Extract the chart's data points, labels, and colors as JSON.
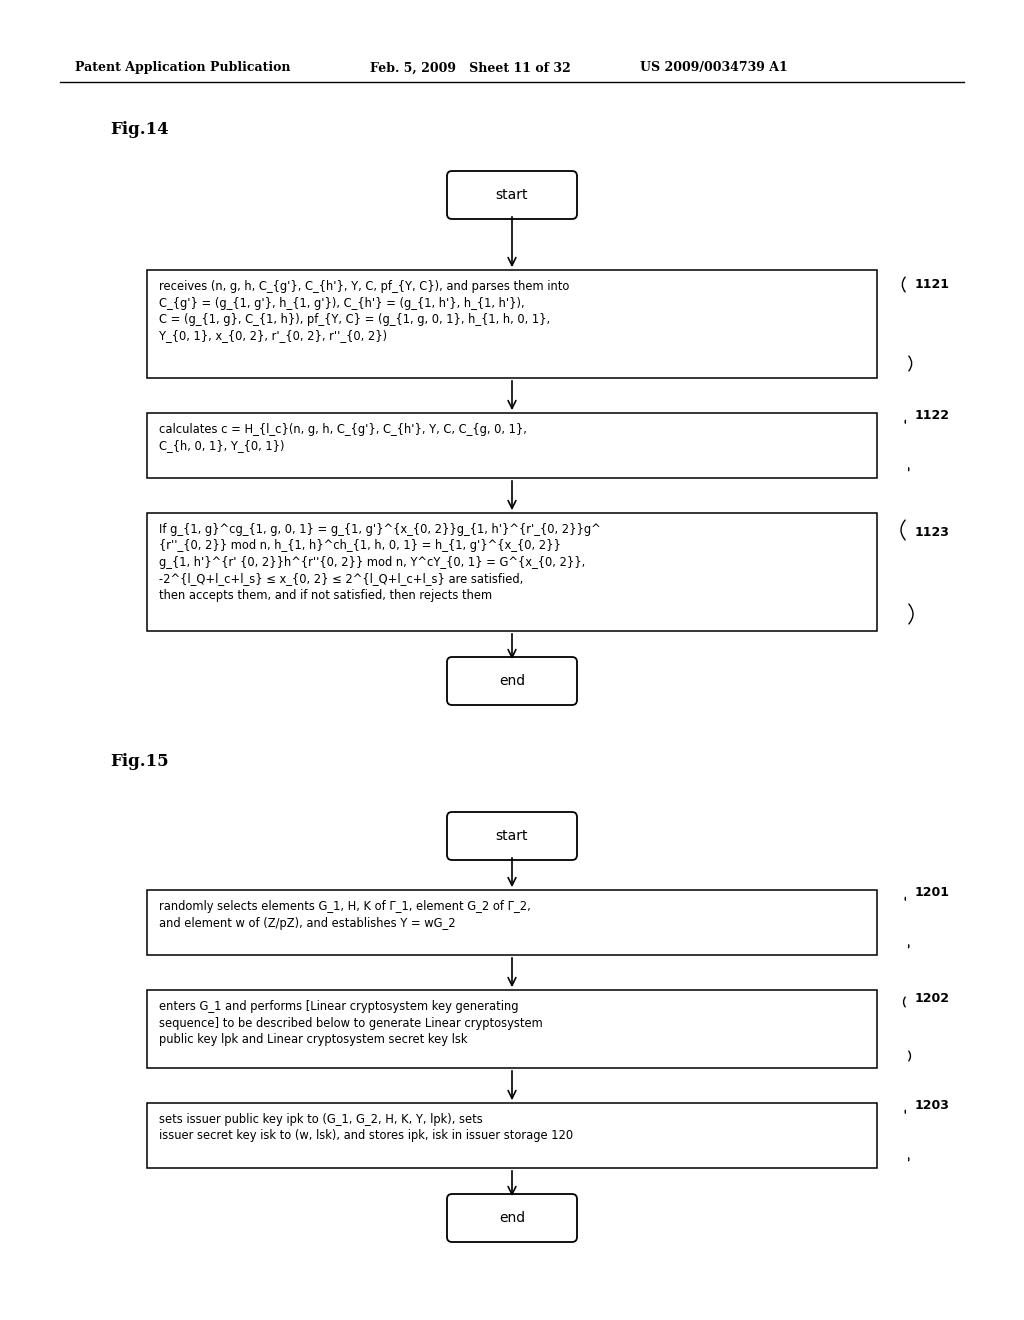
{
  "bg_color": "#ffffff",
  "header_left": "Patent Application Publication",
  "header_mid": "Feb. 5, 2009   Sheet 11 of 32",
  "header_right": "US 2009/0034739 A1",
  "fig14_label": "Fig.14",
  "fig15_label": "Fig.15",
  "box1121_text": "receives (n, g, h, C_{g'}, C_{h'}, Y, C, pf_{Y, C}), and parses them into\nC_{g'} = (g_{1, g'}, h_{1, g'}), C_{h'} = (g_{1, h'}, h_{1, h'}),\nC = (g_{1, g}, C_{1, h}), pf_{Y, C} = (g_{1, g, 0, 1}, h_{1, h, 0, 1},\nY_{0, 1}, x_{0, 2}, r'_{0, 2}, r''_{0, 2})",
  "box1122_text": "calculates c = H_{l_c}(n, g, h, C_{g'}, C_{h'}, Y, C, C_{g, 0, 1},\nC_{h, 0, 1}, Y_{0, 1})",
  "box1123_text": "If g_{1, g}^cg_{1, g, 0, 1} = g_{1, g'}^{x_{0, 2}}g_{1, h'}^{r'_{0, 2}}g^\n{r''_{0, 2}} mod n, h_{1, h}^ch_{1, h, 0, 1} = h_{1, g'}^{x_{0, 2}}\ng_{1, h'}^{r' {0, 2}}h^{r''{0, 2}} mod n, Y^cY_{0, 1} = G^{x_{0, 2}},\n-2^{l_Q+l_c+l_s} ≤ x_{0, 2} ≤ 2^{l_Q+l_c+l_s} are satisfied,\nthen accepts them, and if not satisfied, then rejects them",
  "box1201_text": "randomly selects elements G_1, H, K of Γ_1, element G_2 of Γ_2,\nand element w of (Z/pZ), and establishes Y = wG_2",
  "box1202_text": "enters G_1 and performs [Linear cryptosystem key generating\nsequence] to be described below to generate Linear cryptosystem\npublic key lpk and Linear cryptosystem secret key lsk",
  "box1203_text": "sets issuer public key ipk to (G_1, G_2, H, K, Y, lpk), sets\nissuer secret key isk to (w, lsk), and stores ipk, isk in issuer storage 120"
}
